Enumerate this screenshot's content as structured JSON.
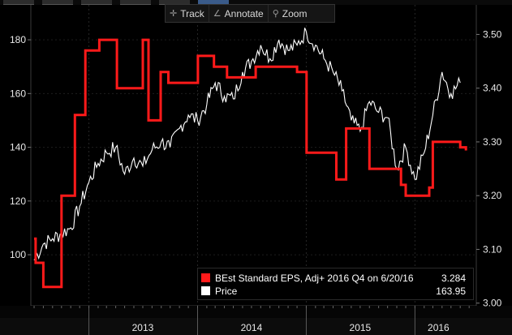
{
  "toolbar": {
    "track_label": "Track",
    "annotate_label": "Annotate",
    "zoom_label": "Zoom"
  },
  "legend": {
    "eps_label": "BEst Standard EPS, Adj+ 2016 Q4 on 6/20/16",
    "eps_value": "3.284",
    "price_label": "Price",
    "price_value": "163.95"
  },
  "colors": {
    "eps": "#ff1a1a",
    "price": "#ffffff",
    "background": "#000000"
  },
  "chart_data": {
    "type": "line",
    "x_ticks": [
      "2013",
      "2014",
      "2015",
      "2016"
    ],
    "y_left": {
      "ticks": [
        100,
        120,
        140,
        160,
        180
      ],
      "lim": [
        81,
        193
      ]
    },
    "y_right": {
      "ticks": [
        "3.00",
        "3.10",
        "3.20",
        "3.30",
        "3.40",
        "3.50"
      ],
      "lim": [
        2.995,
        3.555
      ]
    },
    "series": [
      {
        "name": "Price",
        "axis": "left",
        "color": "#ffffff",
        "x": [
          "2012-07-01",
          "2012-08-01",
          "2012-09-01",
          "2012-10-01",
          "2012-11-01",
          "2012-12-01",
          "2013-01-01",
          "2013-02-01",
          "2013-03-01",
          "2013-04-01",
          "2013-05-01",
          "2013-06-01",
          "2013-07-01",
          "2013-08-01",
          "2013-09-01",
          "2013-10-01",
          "2013-11-01",
          "2013-12-01",
          "2014-01-01",
          "2014-02-01",
          "2014-03-01",
          "2014-04-01",
          "2014-05-01",
          "2014-06-01",
          "2014-07-01",
          "2014-08-01",
          "2014-09-01",
          "2014-10-01",
          "2014-11-01",
          "2014-12-01",
          "2015-01-01",
          "2015-02-01",
          "2015-03-01",
          "2015-04-01",
          "2015-05-01",
          "2015-06-01",
          "2015-07-01",
          "2015-08-01",
          "2015-09-01",
          "2015-10-01",
          "2015-11-01",
          "2015-12-01",
          "2016-01-01",
          "2016-02-01",
          "2016-03-01",
          "2016-04-01",
          "2016-05-01",
          "2016-06-01"
        ],
        "values": [
          98,
          104,
          106,
          108,
          110,
          118,
          127,
          134,
          138,
          140,
          130,
          136,
          133,
          139,
          142,
          140,
          147,
          152,
          150,
          156,
          164,
          159,
          158,
          168,
          172,
          178,
          173,
          180,
          176,
          178,
          183,
          178,
          173,
          168,
          161,
          150,
          146,
          157,
          153,
          151,
          132,
          140,
          128,
          138,
          152,
          168,
          160,
          164
        ]
      },
      {
        "name": "BEst Standard EPS, Adj+ 2016 Q4",
        "axis": "right",
        "color": "#ff1a1a",
        "x": [
          "2012-07-01",
          "2012-07-06",
          "2012-08-01",
          "2012-08-06",
          "2012-09-08",
          "2012-10-01",
          "2012-11-15",
          "2012-12-20",
          "2013-02-05",
          "2013-03-20",
          "2013-04-05",
          "2013-05-01",
          "2013-06-10",
          "2013-07-01",
          "2013-07-20",
          "2013-08-30",
          "2013-09-25",
          "2013-11-10",
          "2013-11-25",
          "2014-01-02",
          "2014-02-20",
          "2014-02-25",
          "2014-04-01",
          "2014-04-10",
          "2014-05-01",
          "2014-06-15",
          "2014-07-05",
          "2014-07-15",
          "2014-07-25",
          "2014-08-05",
          "2014-09-01",
          "2014-12-01",
          "2015-01-02",
          "2015-01-20",
          "2015-02-20",
          "2015-04-05",
          "2015-04-12",
          "2015-05-15",
          "2015-07-20",
          "2015-08-01",
          "2015-08-10",
          "2015-09-10",
          "2015-10-01",
          "2015-10-20",
          "2015-11-15",
          "2015-12-01",
          "2015-12-20",
          "2016-02-01",
          "2016-02-18",
          "2016-03-01",
          "2016-04-01",
          "2016-05-05",
          "2016-05-20",
          "2016-06-01",
          "2016-06-20"
        ],
        "values": [
          3.12,
          3.075,
          3.03,
          3.03,
          3.03,
          3.2,
          3.35,
          3.47,
          3.49,
          3.49,
          3.4,
          3.4,
          3.4,
          3.49,
          3.34,
          3.43,
          3.41,
          3.41,
          3.41,
          3.46,
          3.46,
          3.44,
          3.44,
          3.42,
          3.42,
          3.42,
          3.42,
          3.44,
          3.44,
          3.44,
          3.44,
          3.43,
          3.28,
          3.28,
          3.28,
          3.28,
          3.23,
          3.325,
          3.325,
          3.25,
          3.25,
          3.25,
          3.25,
          3.25,
          3.22,
          3.2,
          3.2,
          3.2,
          3.215,
          3.3,
          3.3,
          3.3,
          3.3,
          3.29,
          3.284
        ]
      }
    ]
  }
}
